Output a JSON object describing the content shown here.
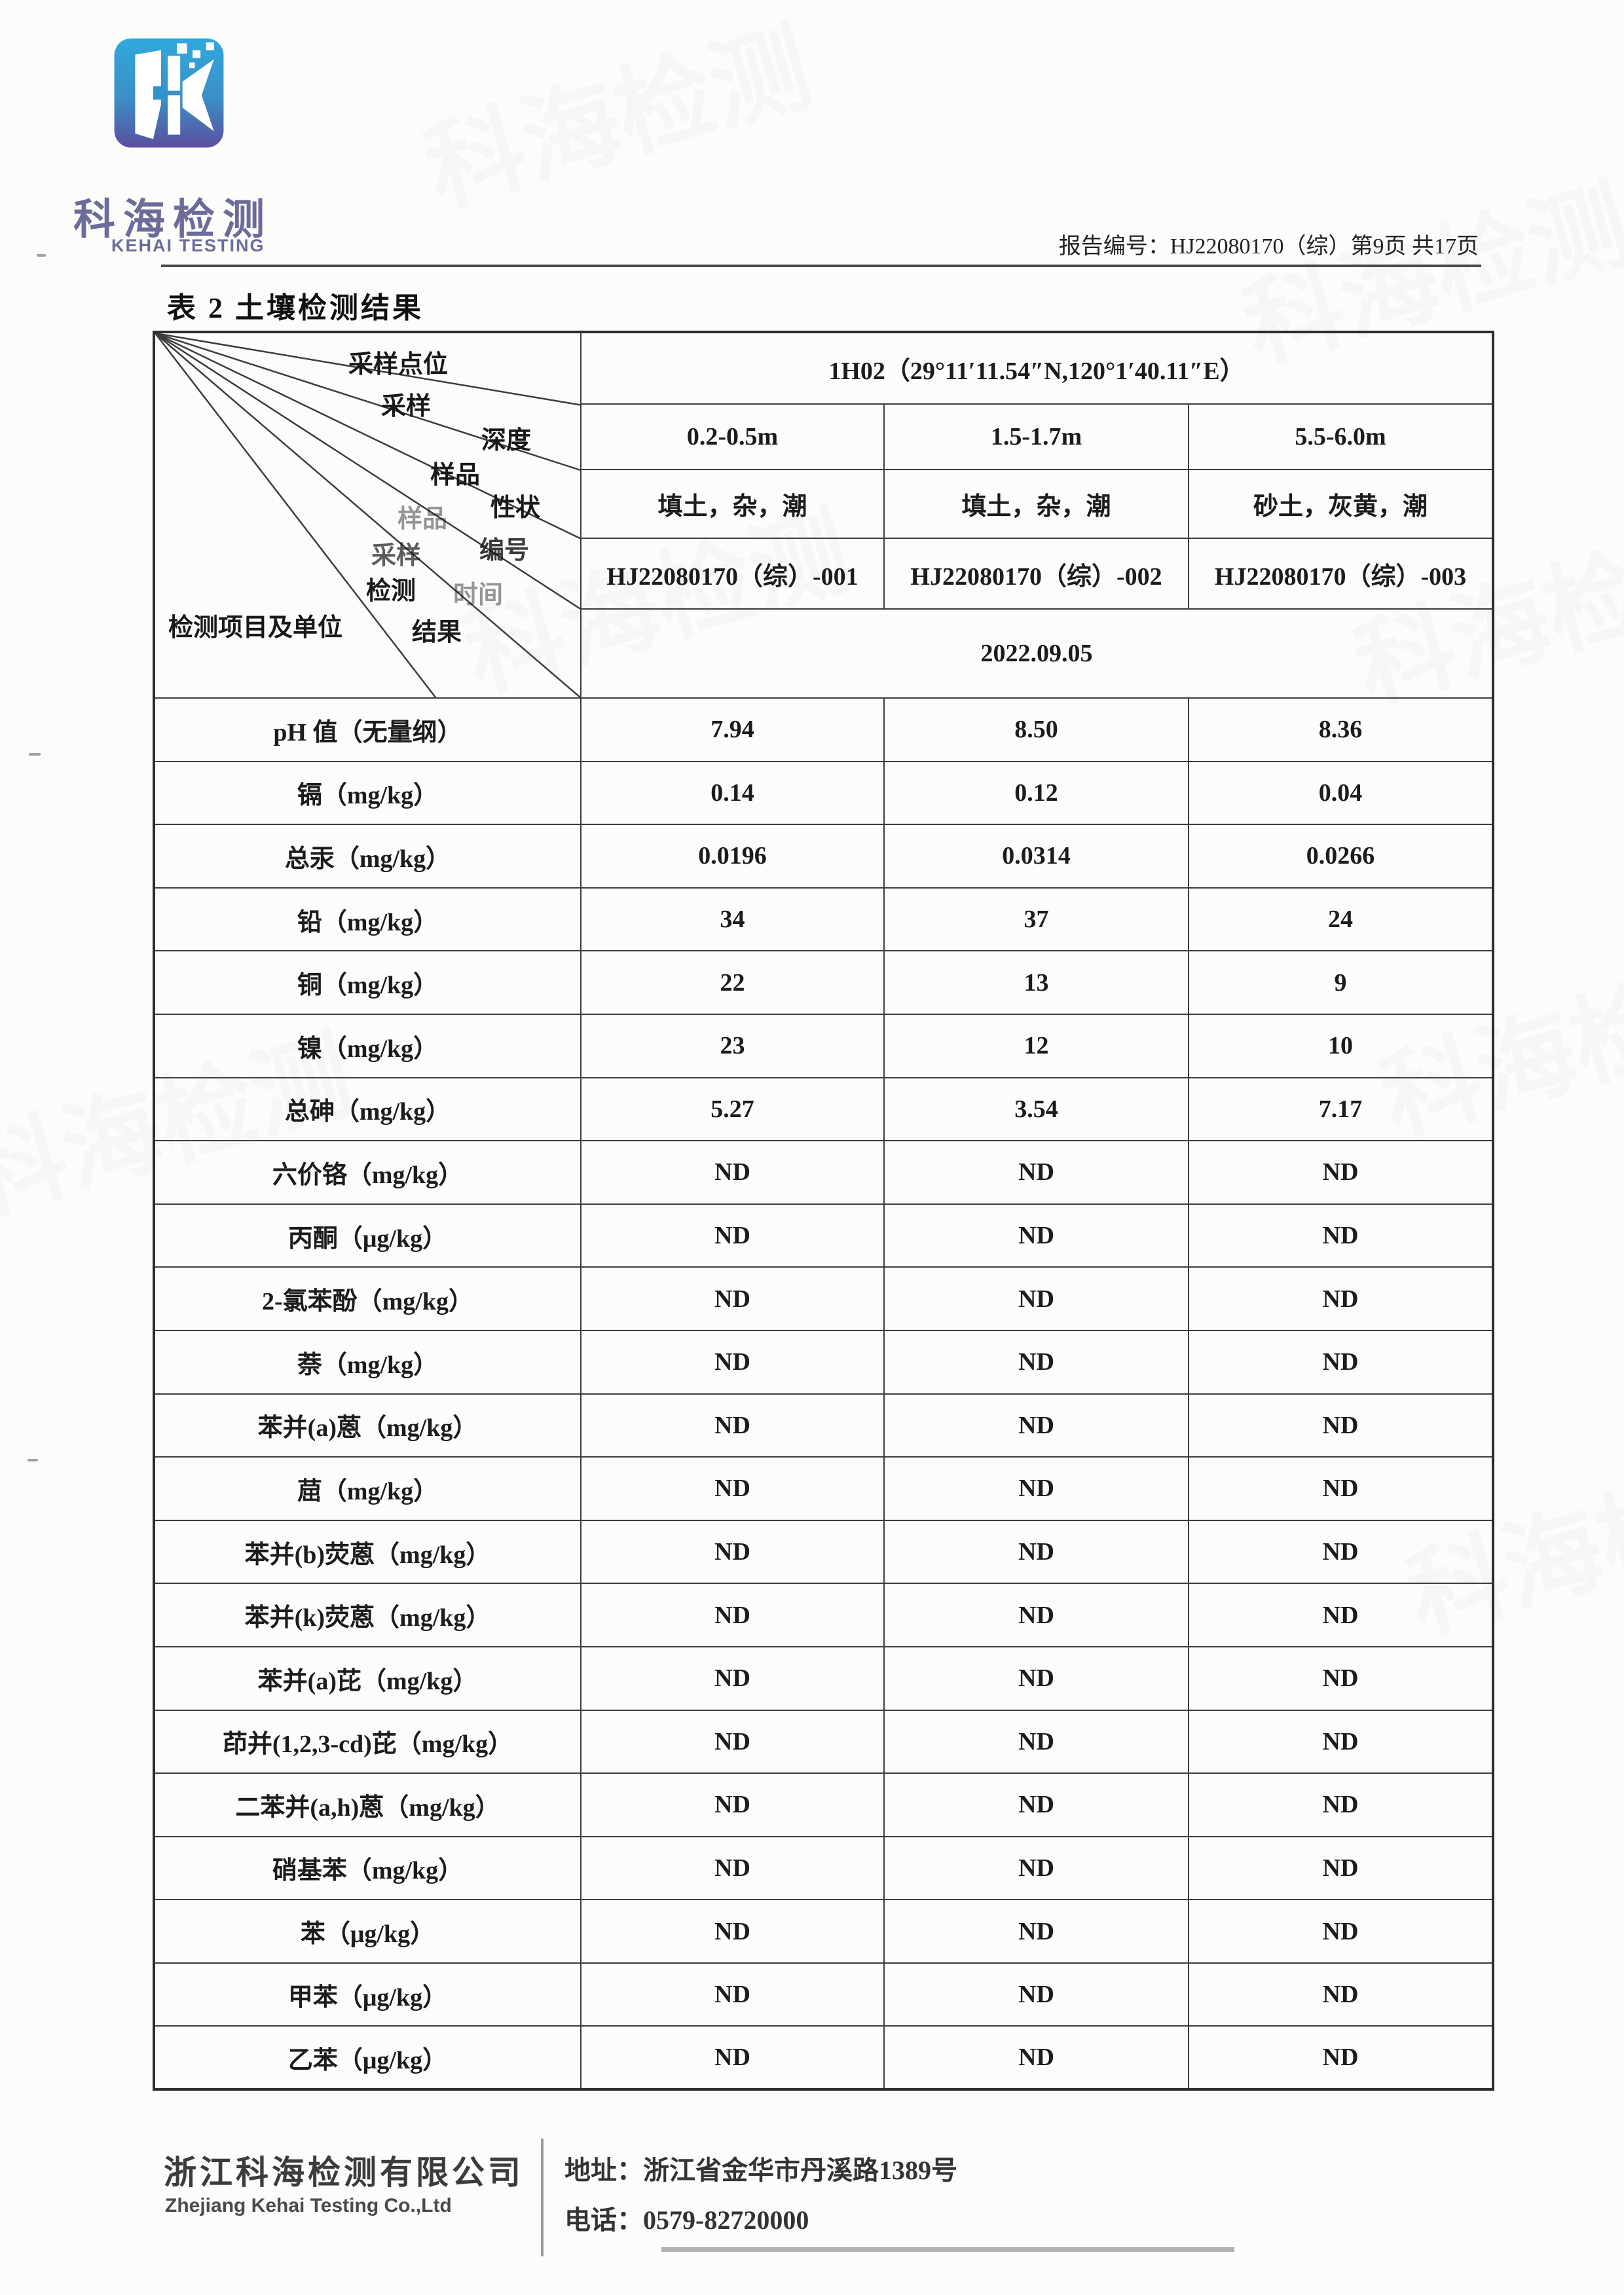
{
  "header": {
    "logo_cn": "科海检测",
    "logo_en": "KEHAI TESTING",
    "report_line": "报告编号：HJ22080170（综）第9页 共17页"
  },
  "title": "表 2 土壤检测结果",
  "table": {
    "corner_labels": [
      "采样点位",
      "采样",
      "深度",
      "样品",
      "样品",
      "性状",
      "采样",
      "编号",
      "检测",
      "时间",
      "结果",
      "检测项目及单位"
    ],
    "sampling_point": "1H02（29°11′11.54″N,120°1′40.11″E）",
    "depths": [
      "0.2-0.5m",
      "1.5-1.7m",
      "5.5-6.0m"
    ],
    "characters": [
      "填土，杂，潮",
      "填土，杂，潮",
      "砂土，灰黄，潮"
    ],
    "sample_ids": [
      "HJ22080170（综）-001",
      "HJ22080170（综）-002",
      "HJ22080170（综）-003"
    ],
    "sampling_date": "2022.09.05",
    "rows": [
      {
        "item": "pH 值（无量纲）",
        "values": [
          "7.94",
          "8.50",
          "8.36"
        ]
      },
      {
        "item": "镉（mg/kg）",
        "values": [
          "0.14",
          "0.12",
          "0.04"
        ]
      },
      {
        "item": "总汞（mg/kg）",
        "values": [
          "0.0196",
          "0.0314",
          "0.0266"
        ]
      },
      {
        "item": "铅（mg/kg）",
        "values": [
          "34",
          "37",
          "24"
        ]
      },
      {
        "item": "铜（mg/kg）",
        "values": [
          "22",
          "13",
          "9"
        ]
      },
      {
        "item": "镍（mg/kg）",
        "values": [
          "23",
          "12",
          "10"
        ]
      },
      {
        "item": "总砷（mg/kg）",
        "values": [
          "5.27",
          "3.54",
          "7.17"
        ]
      },
      {
        "item": "六价铬（mg/kg）",
        "values": [
          "ND",
          "ND",
          "ND"
        ]
      },
      {
        "item": "丙酮（μg/kg）",
        "values": [
          "ND",
          "ND",
          "ND"
        ]
      },
      {
        "item": "2-氯苯酚（mg/kg）",
        "values": [
          "ND",
          "ND",
          "ND"
        ]
      },
      {
        "item": "萘（mg/kg）",
        "values": [
          "ND",
          "ND",
          "ND"
        ]
      },
      {
        "item": "苯并(a)蒽（mg/kg）",
        "values": [
          "ND",
          "ND",
          "ND"
        ]
      },
      {
        "item": "䓛（mg/kg）",
        "values": [
          "ND",
          "ND",
          "ND"
        ]
      },
      {
        "item": "苯并(b)荧蒽（mg/kg）",
        "values": [
          "ND",
          "ND",
          "ND"
        ]
      },
      {
        "item": "苯并(k)荧蒽（mg/kg）",
        "values": [
          "ND",
          "ND",
          "ND"
        ]
      },
      {
        "item": "苯并(a)芘（mg/kg）",
        "values": [
          "ND",
          "ND",
          "ND"
        ]
      },
      {
        "item": "茚并(1,2,3-cd)芘（mg/kg）",
        "values": [
          "ND",
          "ND",
          "ND"
        ]
      },
      {
        "item": "二苯并(a,h)蒽（mg/kg）",
        "values": [
          "ND",
          "ND",
          "ND"
        ]
      },
      {
        "item": "硝基苯（mg/kg）",
        "values": [
          "ND",
          "ND",
          "ND"
        ]
      },
      {
        "item": "苯（μg/kg）",
        "values": [
          "ND",
          "ND",
          "ND"
        ]
      },
      {
        "item": "甲苯（μg/kg）",
        "values": [
          "ND",
          "ND",
          "ND"
        ]
      },
      {
        "item": "乙苯（μg/kg）",
        "values": [
          "ND",
          "ND",
          "ND"
        ]
      }
    ]
  },
  "footer": {
    "company_cn": "浙江科海检测有限公司",
    "company_en": "Zhejiang Kehai Testing Co.,Ltd",
    "address": "地址：浙江省金华市丹溪路1389号",
    "phone": "电话：0579-82720000"
  },
  "colors": {
    "logo_top": "#2fa9dc",
    "logo_bottom": "#5a4f9e",
    "logo_text": "#6c6c9b",
    "border": "#3c3c3c"
  }
}
